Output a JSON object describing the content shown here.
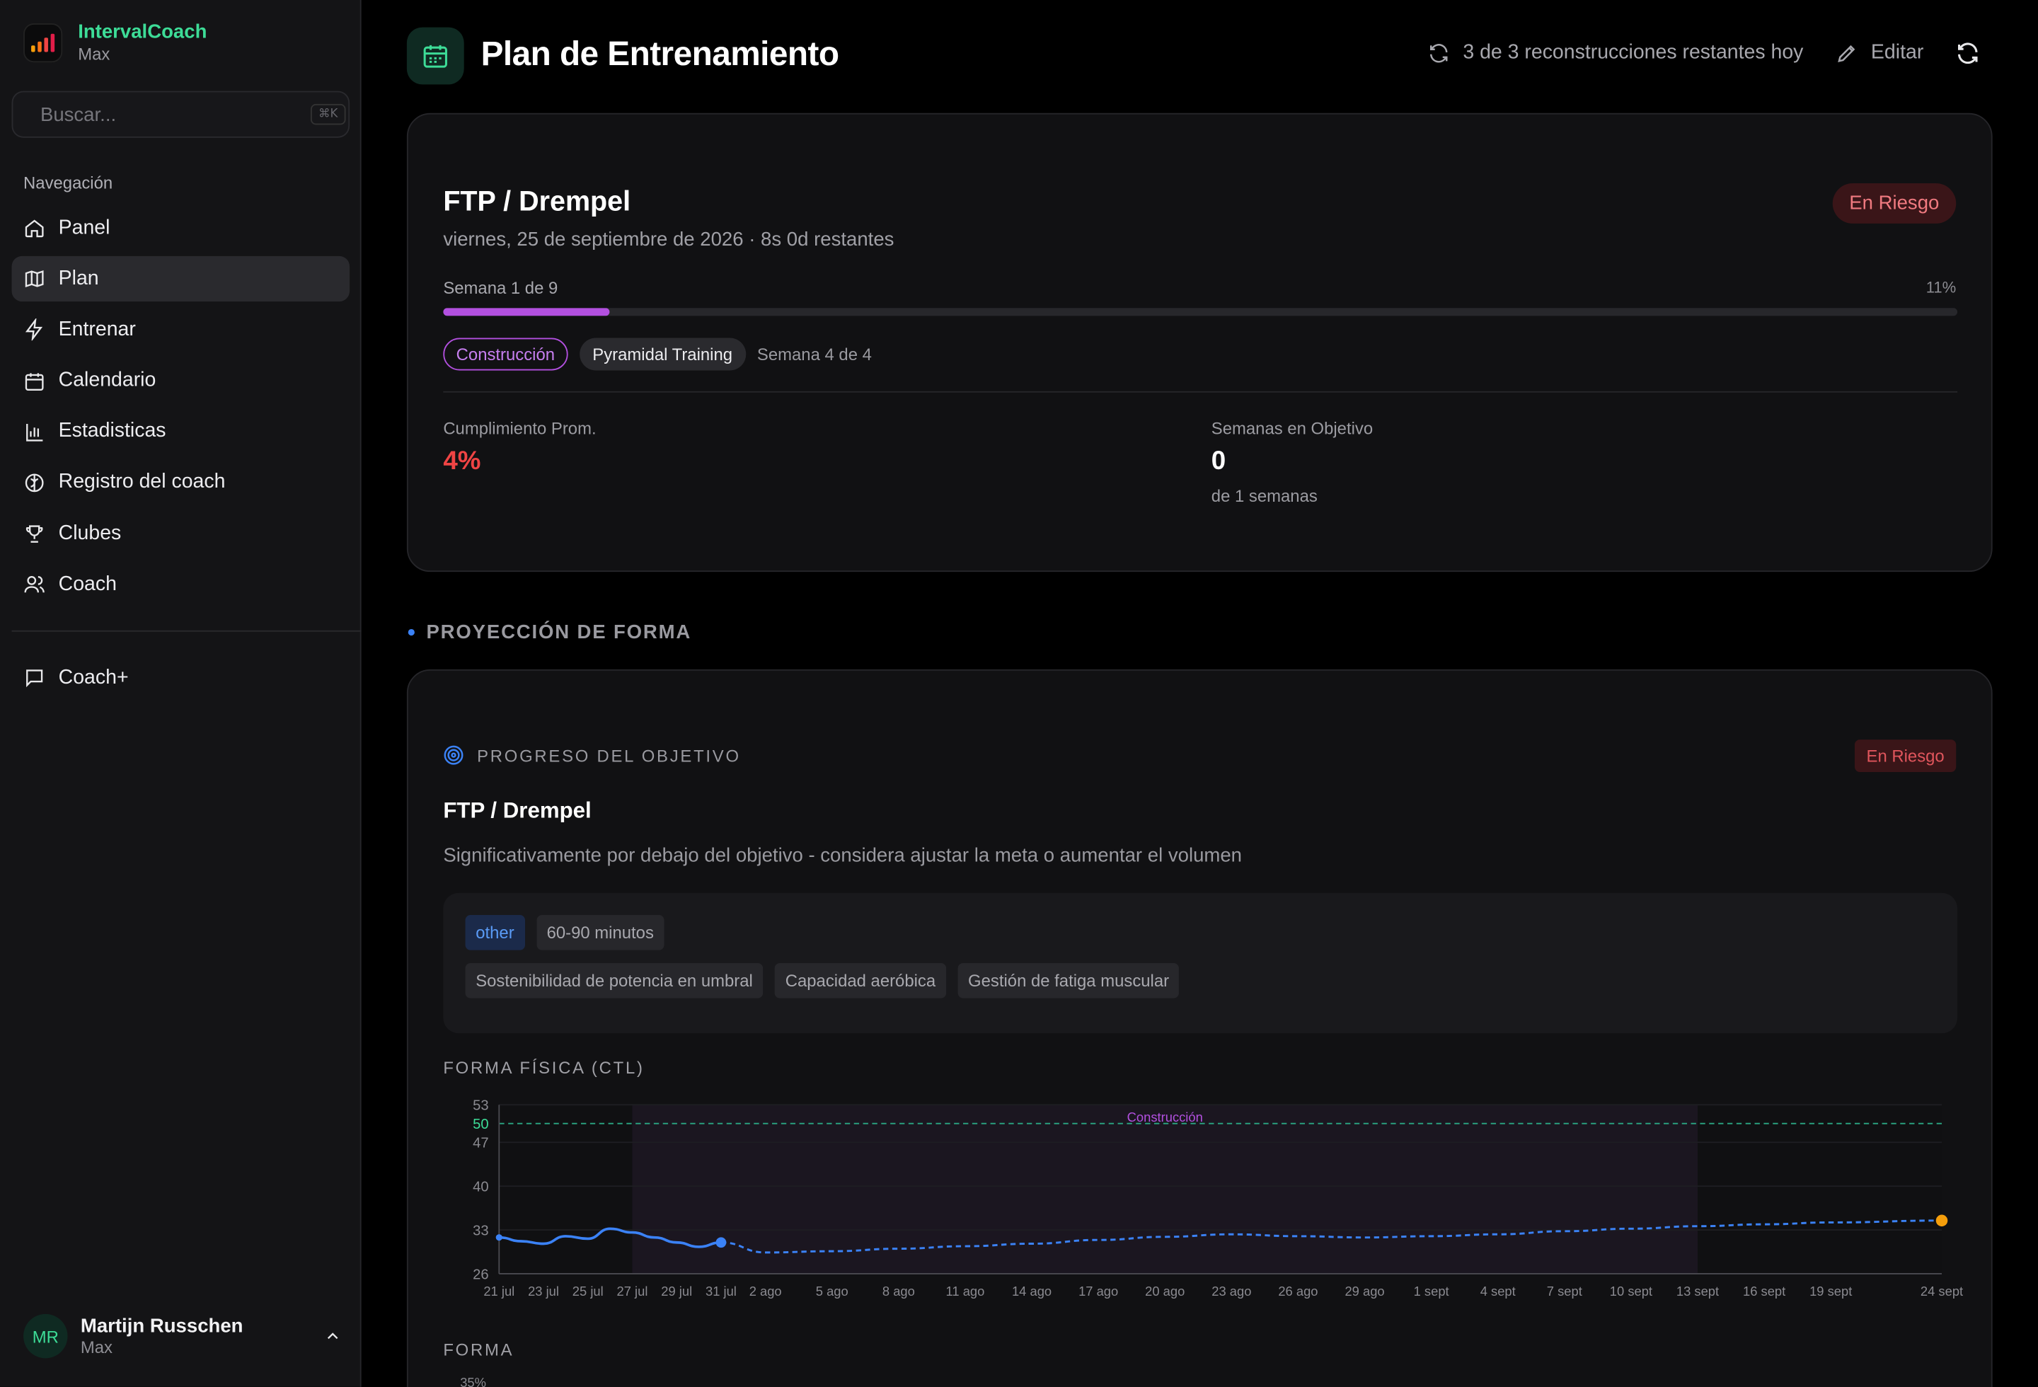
{
  "app": {
    "name": "IntervalCoach",
    "tier": "Max",
    "logo_colors": [
      "#f59e0b",
      "#f97316",
      "#ef4444",
      "#e11d48"
    ]
  },
  "search": {
    "placeholder": "Buscar...",
    "shortcut": "⌘K"
  },
  "sidebar": {
    "section_title": "Navegación",
    "items": [
      {
        "label": "Panel",
        "icon": "home-icon"
      },
      {
        "label": "Plan",
        "icon": "map-icon",
        "active": true
      },
      {
        "label": "Entrenar",
        "icon": "lightning-icon"
      },
      {
        "label": "Calendario",
        "icon": "calendar-icon"
      },
      {
        "label": "Estadisticas",
        "icon": "bar-chart-icon"
      },
      {
        "label": "Registro del coach",
        "icon": "brain-icon"
      },
      {
        "label": "Clubes",
        "icon": "trophy-icon"
      },
      {
        "label": "Coach",
        "icon": "users-icon"
      }
    ],
    "extra": [
      {
        "label": "Coach+",
        "icon": "message-icon"
      }
    ]
  },
  "user": {
    "initials": "MR",
    "name": "Martijn Russchen",
    "tier": "Max"
  },
  "header": {
    "title": "Plan de Entrenamiento",
    "rebuilds": "3 de 3 reconstrucciones restantes hoy",
    "edit": "Editar"
  },
  "goal": {
    "title": "FTP / Drempel",
    "subtitle": "viernes, 25 de septiembre de 2026 · 8s 0d restantes",
    "status": "En Riesgo",
    "week": "Semana 1 de 9",
    "progress_pct": "11%",
    "progress": 0.11,
    "phase": "Construcción",
    "workout_type": "Pyramidal Training",
    "phase_week": "Semana 4 de 4",
    "stats": {
      "compliance_label": "Cumplimiento Prom.",
      "compliance_value": "4%",
      "weeks_label": "Semanas en Objetivo",
      "weeks_value": "0",
      "weeks_sub": "de 1 semanas"
    }
  },
  "section_title": "PROYECCIÓN DE FORMA",
  "goal_progress": {
    "heading": "PROGRESO DEL OBJETIVO",
    "status": "En Riesgo",
    "title": "FTP / Drempel",
    "description": "Significativamente por debajo del objetivo - considera ajustar la meta o aumentar el volumen",
    "tags_row1": [
      "other",
      "60-90 minutos"
    ],
    "tags_row2": [
      "Sostenibilidad de potencia en umbral",
      "Capacidad aeróbica",
      "Gestión de fatiga muscular"
    ]
  },
  "chart_data": {
    "type": "line",
    "title": "FORMA FÍSICA (CTL)",
    "ylim": [
      26,
      53
    ],
    "yticks": [
      "53",
      "50",
      "47",
      "40",
      "33",
      "26"
    ],
    "target": 50,
    "phase_band": {
      "label": "Construcción",
      "from": "27 jul",
      "to": "13 sept"
    },
    "x_labels": [
      "21 jul",
      "23 jul",
      "25 jul",
      "27 jul",
      "29 jul",
      "31 jul",
      "2 ago",
      "5 ago",
      "8 ago",
      "11 ago",
      "14 ago",
      "17 ago",
      "20 ago",
      "23 ago",
      "26 ago",
      "29 ago",
      "1 sept",
      "4 sept",
      "7 sept",
      "10 sept",
      "13 sept",
      "16 sept",
      "19 sept",
      "24 sept"
    ],
    "series": [
      {
        "style": "solid",
        "color": "#3b82f6",
        "x": [
          "21 jul",
          "22 jul",
          "23 jul",
          "24 jul",
          "25 jul",
          "26 jul",
          "27 jul",
          "28 jul",
          "29 jul",
          "30 jul",
          "31 jul"
        ],
        "y": [
          31.8,
          31.2,
          30.8,
          32.0,
          31.6,
          33.2,
          32.6,
          31.8,
          31.0,
          30.3,
          31.0
        ]
      },
      {
        "style": "dashed",
        "color": "#3b82f6",
        "x": [
          "31 jul",
          "2 ago",
          "5 ago",
          "8 ago",
          "11 ago",
          "14 ago",
          "17 ago",
          "20 ago",
          "23 ago",
          "26 ago",
          "29 ago",
          "1 sept",
          "4 sept",
          "7 sept",
          "10 sept",
          "13 sept",
          "16 sept",
          "19 sept",
          "24 sept"
        ],
        "y": [
          31.0,
          29.4,
          29.6,
          30.0,
          30.4,
          30.8,
          31.4,
          31.9,
          32.3,
          32.0,
          31.8,
          32.0,
          32.3,
          32.8,
          33.2,
          33.6,
          33.9,
          34.2,
          34.5
        ]
      }
    ],
    "end_point": {
      "x": "24 sept",
      "y": 34.5,
      "color": "#f59e0b"
    }
  },
  "forma": {
    "title": "FORMA",
    "first_tick": "35%"
  }
}
